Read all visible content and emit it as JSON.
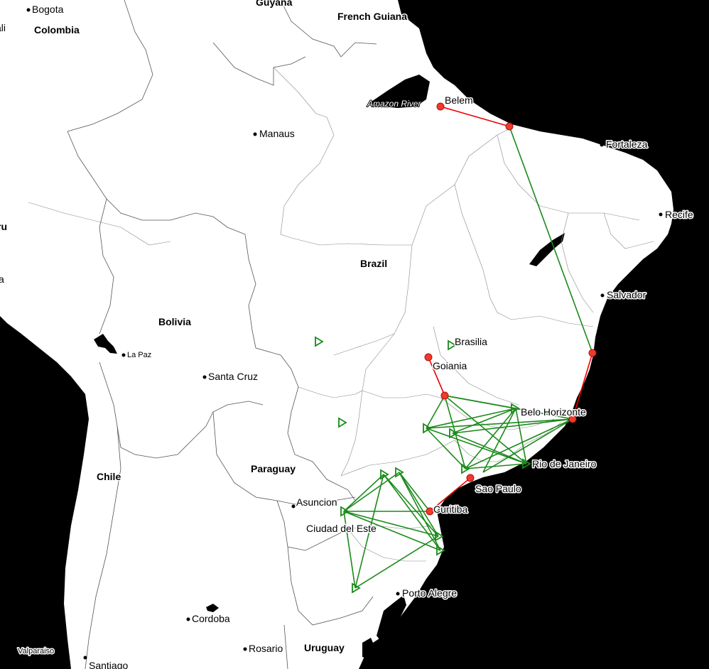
{
  "map": {
    "countries": [
      "Guyana",
      "French Guiana",
      "Colombia",
      "Brazil",
      "Bolivia",
      "Paraguay",
      "Chile",
      "Uruguay",
      "ru",
      "a",
      "ali"
    ],
    "cities": [
      "Bogota",
      "Manaus",
      "Belem",
      "Fortaleza",
      "Recife",
      "Salvador",
      "Brasilia",
      "Goiania",
      "Belo Horizonte",
      "Rio de Janeiro",
      "Sao Paulo",
      "Curitiba",
      "Asuncion",
      "Ciudad del Este",
      "Porto Alegre",
      "La Paz",
      "Santa Cruz",
      "Cordoba",
      "Rosario",
      "Santiago",
      "Valparaiso"
    ],
    "river": "Amazon River"
  },
  "colors": {
    "ocean": "#000000",
    "land": "#ffffff",
    "red_route": "#e00000",
    "green_route": "#1a8a1a"
  }
}
